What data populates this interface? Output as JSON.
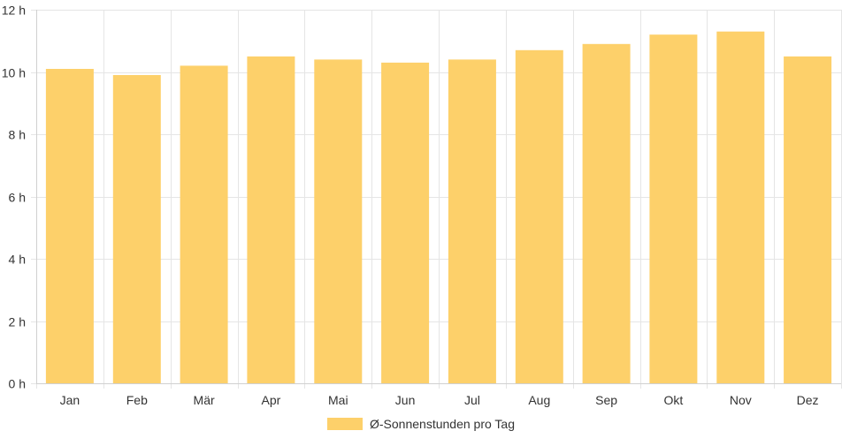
{
  "chart_data": {
    "type": "bar",
    "categories": [
      "Jan",
      "Feb",
      "Mär",
      "Apr",
      "Mai",
      "Jun",
      "Jul",
      "Aug",
      "Sep",
      "Okt",
      "Nov",
      "Dez"
    ],
    "series": [
      {
        "name": "Ø-Sonnenstunden pro Tag",
        "values": [
          10.1,
          9.9,
          10.2,
          10.5,
          10.4,
          10.3,
          10.4,
          10.7,
          10.9,
          11.2,
          11.3,
          10.5
        ]
      }
    ],
    "y_ticks": [
      0,
      2,
      4,
      6,
      8,
      10,
      12
    ],
    "y_tick_suffix": " h",
    "ylim": [
      0,
      12
    ],
    "grid": true,
    "legend_position": "bottom",
    "bar_color": "#fdd06a"
  }
}
